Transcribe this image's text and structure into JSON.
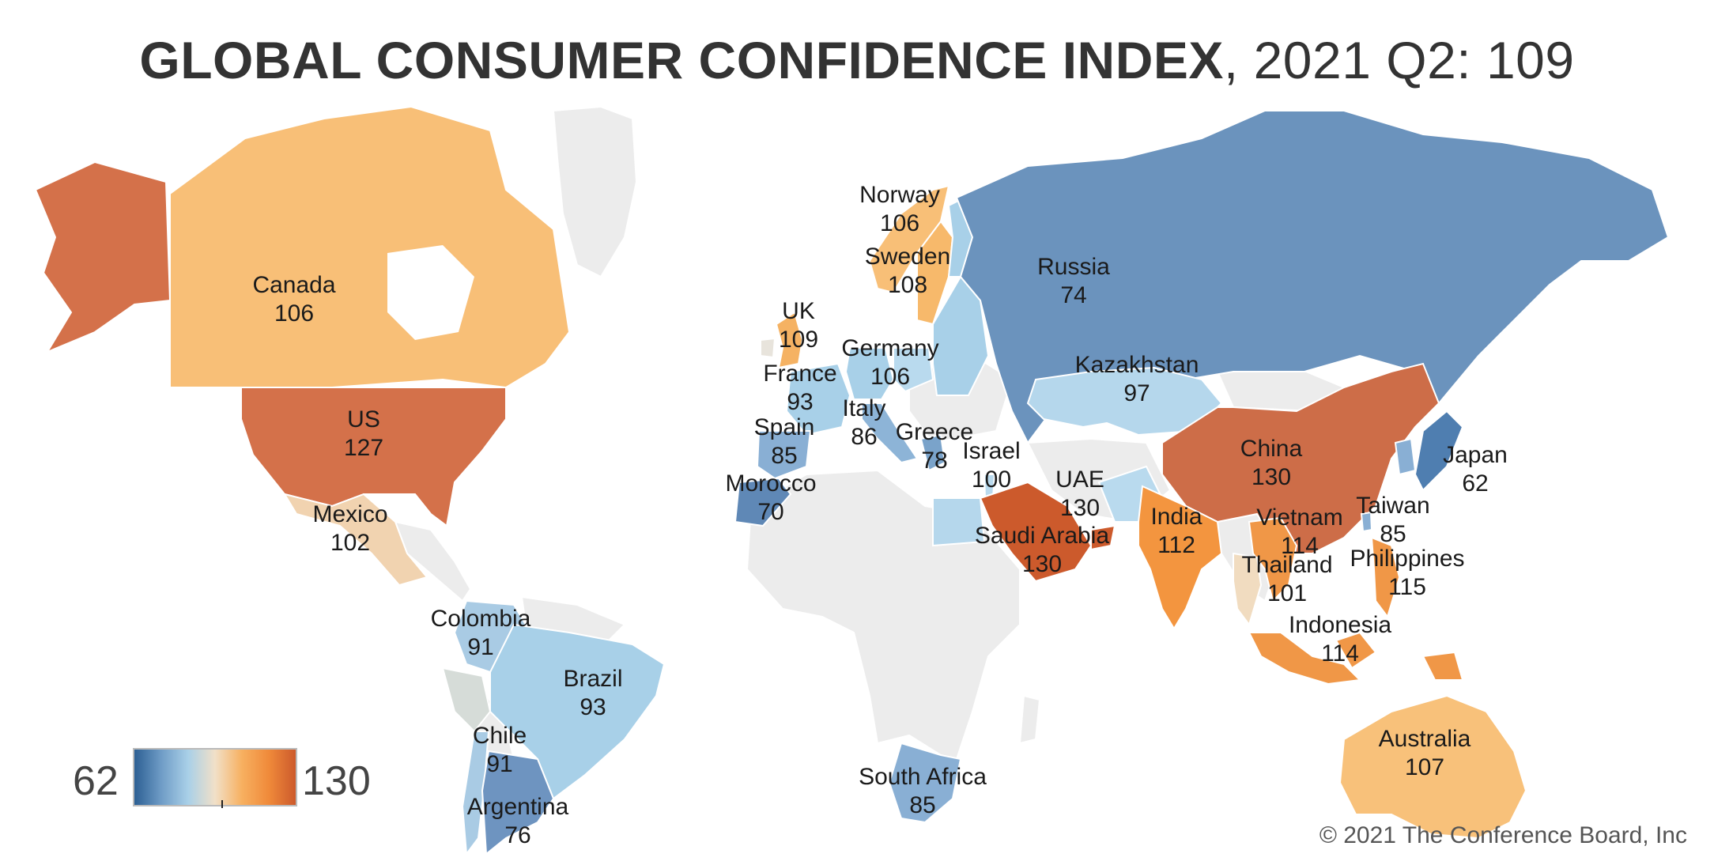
{
  "title": {
    "bold": "GLOBAL CONSUMER CONFIDENCE INDEX",
    "rest": ", 2021 Q2: 109"
  },
  "legend": {
    "min": "62",
    "max": "130",
    "colors": [
      "#2c5f93",
      "#6f9cc6",
      "#a9d0e8",
      "#f1e0c8",
      "#f7b060",
      "#f08a3a",
      "#cc5a2c"
    ]
  },
  "credit": "© 2021 The Conference Board, Inc",
  "map_colors": {
    "land": "#ececec",
    "coast": "#ffffff"
  },
  "countries": [
    {
      "name": "Canada",
      "value": "106",
      "color": "#f8bf77"
    },
    {
      "name": "US",
      "value": "127",
      "color": "#d4714a"
    },
    {
      "name": "Mexico",
      "value": "102",
      "color": "#f1d3b0"
    },
    {
      "name": "Colombia",
      "value": "91",
      "color": "#a9cbe4"
    },
    {
      "name": "Brazil",
      "value": "93",
      "color": "#a8d0e8"
    },
    {
      "name": "Chile",
      "value": "91",
      "color": "#a9cbe4"
    },
    {
      "name": "Argentina",
      "value": "76",
      "color": "#6e94c0"
    },
    {
      "name": "Norway",
      "value": "106",
      "color": "#f8bf77"
    },
    {
      "name": "Sweden",
      "value": "108",
      "color": "#f7b96b"
    },
    {
      "name": "UK",
      "value": "109",
      "color": "#f5b263"
    },
    {
      "name": "Germany",
      "value": "106",
      "color": "#a8d0e8"
    },
    {
      "name": "France",
      "value": "93",
      "color": "#a8d0e8"
    },
    {
      "name": "Italy",
      "value": "86",
      "color": "#8db4d7"
    },
    {
      "name": "Spain",
      "value": "85",
      "color": "#89afd4"
    },
    {
      "name": "Greece",
      "value": "78",
      "color": "#7aa3ca"
    },
    {
      "name": "Morocco",
      "value": "70",
      "color": "#5f88b6"
    },
    {
      "name": "Israel",
      "value": "100",
      "color": "#b9daee"
    },
    {
      "name": "UAE",
      "value": "130",
      "color": "#cc5a2c"
    },
    {
      "name": "Saudi Arabia",
      "value": "130",
      "color": "#cc5a2c"
    },
    {
      "name": "South Africa",
      "value": "85",
      "color": "#89afd4"
    },
    {
      "name": "Russia",
      "value": "74",
      "color": "#6b93bd"
    },
    {
      "name": "Kazakhstan",
      "value": "97",
      "color": "#b5d7ec"
    },
    {
      "name": "China",
      "value": "130",
      "color": "#cd6d48"
    },
    {
      "name": "India",
      "value": "112",
      "color": "#f3953f"
    },
    {
      "name": "Japan",
      "value": "62",
      "color": "#4f7eb0"
    },
    {
      "name": "Vietnam",
      "value": "114",
      "color": "#f09747"
    },
    {
      "name": "Taiwan",
      "value": "85",
      "color": "#89afd4"
    },
    {
      "name": "Thailand",
      "value": "101",
      "color": "#f1dcc0"
    },
    {
      "name": "Philippines",
      "value": "115",
      "color": "#f09747"
    },
    {
      "name": "Indonesia",
      "value": "114",
      "color": "#f09747"
    },
    {
      "name": "Australia",
      "value": "107",
      "color": "#f8c17a"
    }
  ]
}
